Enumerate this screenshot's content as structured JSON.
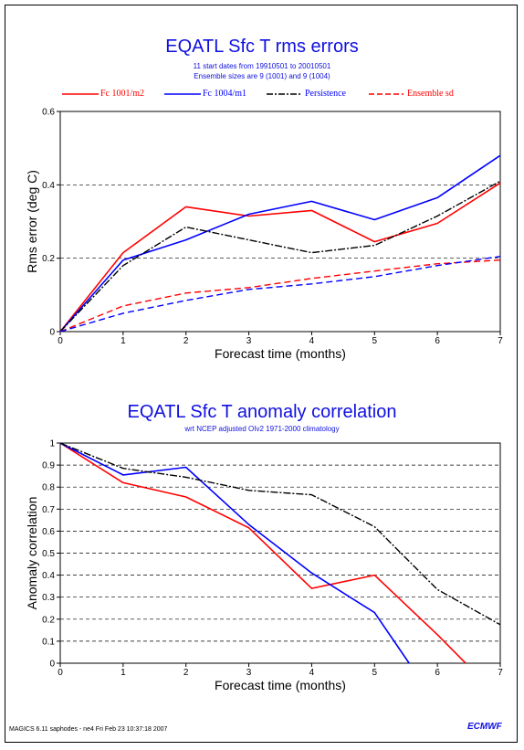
{
  "charts": [
    {
      "title": "EQATL Sfc T rms errors",
      "subtitle_lines": [
        "11 start dates from 19910501 to 20010501",
        "Ensemble sizes are 9 (1001) and 9 (1004)"
      ]
    },
    {
      "title": "EQATL Sfc T anomaly correlation",
      "subtitle_lines": [
        "wrt NCEP adjusted OIv2 1971-2000 climatology"
      ]
    }
  ],
  "legend": [
    {
      "label": "Fc 1001/m2",
      "color": "#ff0000",
      "style": "solid"
    },
    {
      "label": "Fc 1004/m1",
      "color": "#0000ff",
      "style": "solid"
    },
    {
      "label": "Persistence",
      "color": "#000000",
      "style": "dashdot"
    },
    {
      "label": "Ensemble sd",
      "color": "#ff0000",
      "style": "dashed"
    }
  ],
  "footer": "MAGICS 6.11 saphodes - ne4 Fri Feb 23 10:37:18 2007",
  "logo": "ECMWF",
  "chart_data": [
    {
      "type": "line",
      "title": "EQATL Sfc T rms errors",
      "xlabel": "Forecast time (months)",
      "ylabel": "Rms error (deg C)",
      "xlim": [
        0,
        7
      ],
      "ylim": [
        0,
        0.6
      ],
      "xticks": [
        0,
        1,
        2,
        3,
        4,
        5,
        6,
        7
      ],
      "yticks": [
        0,
        0.2,
        0.4,
        0.6
      ],
      "grid": "horizontal dashed",
      "series": [
        {
          "name": "Fc 1001/m2",
          "color": "#ff0000",
          "style": "solid",
          "x": [
            0,
            1,
            2,
            3,
            4,
            5,
            6,
            7
          ],
          "y": [
            0,
            0.215,
            0.34,
            0.315,
            0.33,
            0.245,
            0.295,
            0.405
          ]
        },
        {
          "name": "Fc 1004/m1",
          "color": "#0000ff",
          "style": "solid",
          "x": [
            0,
            1,
            2,
            3,
            4,
            5,
            6,
            7
          ],
          "y": [
            0,
            0.195,
            0.25,
            0.32,
            0.355,
            0.305,
            0.365,
            0.48
          ]
        },
        {
          "name": "Persistence",
          "color": "#000000",
          "style": "dashdot",
          "x": [
            0,
            1,
            2,
            3,
            4,
            5,
            6,
            7
          ],
          "y": [
            0,
            0.18,
            0.285,
            0.25,
            0.215,
            0.235,
            0.315,
            0.41
          ]
        },
        {
          "name": "Ensemble sd",
          "color": "#ff0000",
          "style": "dashed",
          "x": [
            0,
            1,
            2,
            3,
            4,
            5,
            6,
            7
          ],
          "y": [
            0,
            0.07,
            0.105,
            0.12,
            0.145,
            0.165,
            0.185,
            0.195
          ]
        },
        {
          "name": "Ensemble sd",
          "color": "#0000ff",
          "style": "dashed",
          "x": [
            0,
            1,
            2,
            3,
            4,
            5,
            6,
            7
          ],
          "y": [
            0,
            0.05,
            0.085,
            0.115,
            0.13,
            0.15,
            0.18,
            0.205
          ]
        }
      ]
    },
    {
      "type": "line",
      "title": "EQATL Sfc T anomaly correlation",
      "xlabel": "Forecast time (months)",
      "ylabel": "Anomaly correlation",
      "xlim": [
        0,
        7
      ],
      "ylim": [
        0,
        1
      ],
      "xticks": [
        0,
        1,
        2,
        3,
        4,
        5,
        6,
        7
      ],
      "yticks": [
        0,
        0.1,
        0.2,
        0.3,
        0.4,
        0.5,
        0.6,
        0.7,
        0.8,
        0.9,
        1
      ],
      "grid": "horizontal dashed",
      "series": [
        {
          "name": "Fc 1001/m2",
          "color": "#ff0000",
          "style": "solid",
          "x": [
            0,
            1,
            2,
            3,
            4,
            5,
            6,
            6.45
          ],
          "y": [
            1,
            0.82,
            0.755,
            0.615,
            0.34,
            0.4,
            0.13,
            0
          ]
        },
        {
          "name": "Fc 1004/m1",
          "color": "#0000ff",
          "style": "solid",
          "x": [
            0,
            1,
            2,
            3,
            4,
            5,
            5.55
          ],
          "y": [
            1,
            0.855,
            0.89,
            0.63,
            0.41,
            0.23,
            0
          ]
        },
        {
          "name": "Persistence",
          "color": "#000000",
          "style": "dashdot",
          "x": [
            0,
            1,
            2,
            3,
            4,
            5,
            6,
            7
          ],
          "y": [
            1,
            0.885,
            0.845,
            0.785,
            0.765,
            0.62,
            0.335,
            0.175
          ]
        }
      ]
    }
  ]
}
